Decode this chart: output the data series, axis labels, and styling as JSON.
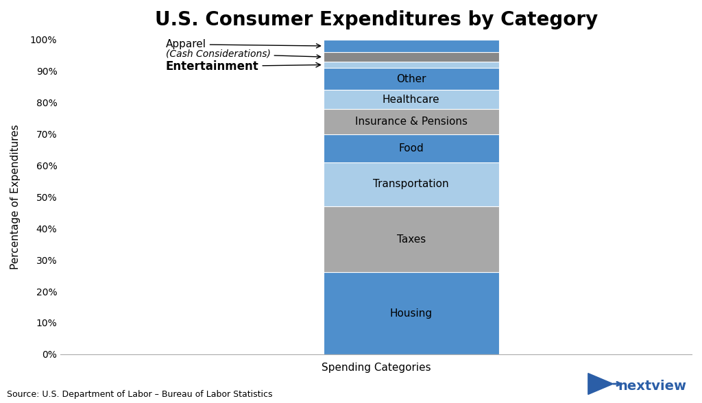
{
  "title": "U.S. Consumer Expenditures by Category",
  "xlabel": "Spending Categories",
  "ylabel": "Percentage of Expenditures",
  "source": "Source: U.S. Department of Labor – Bureau of Labor Statistics",
  "segments": [
    {
      "label": "Housing",
      "value": 26.0,
      "color": "#4F8FCC"
    },
    {
      "label": "Taxes",
      "value": 21.0,
      "color": "#A8A8A8"
    },
    {
      "label": "Transportation",
      "value": 14.0,
      "color": "#AACDE8"
    },
    {
      "label": "Food",
      "value": 9.0,
      "color": "#4F8FCC"
    },
    {
      "label": "Insurance & Pensions",
      "value": 8.0,
      "color": "#A8A8A8"
    },
    {
      "label": "Healthcare",
      "value": 6.0,
      "color": "#AACDE8"
    },
    {
      "label": "Other",
      "value": 7.0,
      "color": "#4F8FCC"
    },
    {
      "label": "Entertainment",
      "value": 2.0,
      "color": "#AACDE8"
    },
    {
      "label": "(Cash Considerations)",
      "value": 3.0,
      "color": "#888888"
    },
    {
      "label": "Apparel",
      "value": 4.0,
      "color": "#4F8FCC"
    }
  ],
  "annotation_labels": [
    "Apparel",
    "(Cash Considerations)",
    "Entertainment"
  ],
  "background_color": "#FFFFFF",
  "bar_width": 0.5,
  "bar_x": 1.0,
  "xlim": [
    0,
    1.8
  ],
  "ylim": [
    0,
    100
  ],
  "yticks": [
    0,
    10,
    20,
    30,
    40,
    50,
    60,
    70,
    80,
    90,
    100
  ],
  "yticklabels": [
    "0%",
    "10%",
    "20%",
    "30%",
    "40%",
    "50%",
    "60%",
    "70%",
    "80%",
    "90%",
    "100%"
  ],
  "title_fontsize": 20,
  "axis_label_fontsize": 11,
  "tick_fontsize": 10,
  "segment_label_fontsize": 11,
  "source_fontsize": 9,
  "nextview_color": "#2B5EA7"
}
